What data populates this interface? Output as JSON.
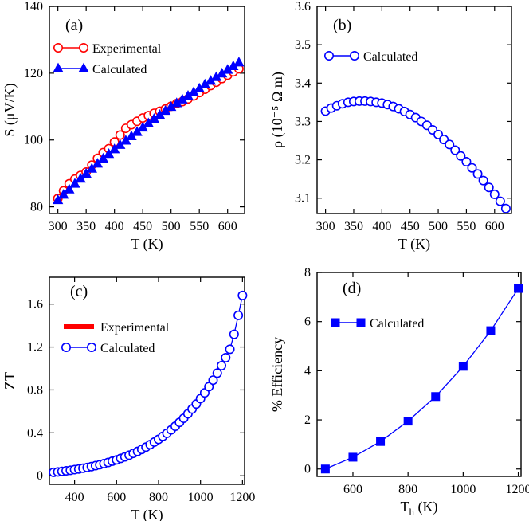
{
  "chart_data": [
    {
      "panel": "(a)",
      "type": "line",
      "xlabel": "T (K)",
      "ylabel": "S (μV/K)",
      "xlim": [
        285,
        630
      ],
      "ylim": [
        78,
        140
      ],
      "xticks": [
        300,
        350,
        400,
        450,
        500,
        550,
        600
      ],
      "yticks": [
        80,
        100,
        120,
        140
      ],
      "legend": "top-left",
      "series": [
        {
          "name": "Experimental",
          "color": "#ff0000",
          "marker": "circle",
          "x": [
            300,
            310,
            320,
            330,
            340,
            350,
            360,
            370,
            380,
            390,
            400,
            410,
            420,
            430,
            440,
            450,
            460,
            470,
            480,
            490,
            500,
            510,
            520,
            530,
            540,
            550,
            560,
            570,
            580,
            590,
            600,
            610,
            620
          ],
          "y": [
            82.5,
            84.8,
            86.9,
            88.3,
            89.4,
            90.4,
            92.5,
            94.5,
            96.2,
            97.4,
            99.4,
            101.5,
            103.5,
            104.6,
            105.6,
            106.6,
            107.3,
            108.0,
            108.6,
            109.3,
            110.1,
            110.9,
            111.5,
            112.3,
            113.2,
            114.2,
            115.2,
            116.3,
            117.3,
            118.4,
            119.4,
            120.4,
            121.3
          ]
        },
        {
          "name": "Calculated",
          "color": "#0000ff",
          "marker": "triangle",
          "x": [
            300,
            310,
            320,
            330,
            340,
            350,
            360,
            370,
            380,
            390,
            400,
            410,
            420,
            430,
            440,
            450,
            460,
            470,
            480,
            490,
            500,
            510,
            520,
            530,
            540,
            550,
            560,
            570,
            580,
            590,
            600,
            610,
            620
          ],
          "y": [
            82.0,
            83.6,
            85.2,
            86.9,
            88.4,
            89.9,
            91.4,
            92.9,
            94.4,
            95.8,
            97.2,
            98.5,
            99.8,
            101.1,
            102.4,
            103.7,
            105.0,
            106.3,
            107.5,
            108.7,
            109.9,
            111.0,
            112.1,
            113.2,
            114.3,
            115.4,
            116.6,
            117.7,
            118.8,
            119.9,
            121.0,
            122.1,
            123.2
          ]
        }
      ]
    },
    {
      "panel": "(b)",
      "type": "line",
      "xlabel": "T (K)",
      "ylabel": "ρ (10⁻⁵ Ω m)",
      "xlim": [
        285,
        630
      ],
      "ylim": [
        3.06,
        3.6
      ],
      "xticks": [
        300,
        350,
        400,
        450,
        500,
        550,
        600
      ],
      "yticks": [
        3.1,
        3.2,
        3.3,
        3.4,
        3.5,
        3.6
      ],
      "legend": "top-left",
      "series": [
        {
          "name": "Calculated",
          "color": "#0000ff",
          "marker": "circle",
          "x": [
            300,
            310,
            320,
            330,
            340,
            350,
            360,
            370,
            380,
            390,
            400,
            410,
            420,
            430,
            440,
            450,
            460,
            470,
            480,
            490,
            500,
            510,
            520,
            530,
            540,
            550,
            560,
            570,
            580,
            590,
            600,
            610,
            620
          ],
          "y": [
            3.327,
            3.335,
            3.341,
            3.346,
            3.35,
            3.352,
            3.353,
            3.353,
            3.352,
            3.35,
            3.348,
            3.344,
            3.339,
            3.333,
            3.326,
            3.318,
            3.31,
            3.3,
            3.29,
            3.278,
            3.266,
            3.253,
            3.24,
            3.225,
            3.21,
            3.195,
            3.179,
            3.163,
            3.146,
            3.128,
            3.11,
            3.092,
            3.073
          ]
        }
      ]
    },
    {
      "panel": "(c)",
      "type": "line",
      "xlabel": "T (K)",
      "ylabel": "ZT",
      "xlim": [
        280,
        1210
      ],
      "ylim": [
        -0.08,
        1.85
      ],
      "xticks": [
        400,
        600,
        800,
        1000,
        1200
      ],
      "yticks": [
        0,
        0.4,
        0.8,
        1.2,
        1.6
      ],
      "legend": "middle-left",
      "series": [
        {
          "name": "Experimental",
          "color": "#ff0000",
          "marker": "line",
          "x": [
            300,
            620
          ],
          "y": [
            0.03,
            0.145
          ]
        },
        {
          "name": "Calculated",
          "color": "#0000ff",
          "marker": "circle",
          "x": [
            300,
            320,
            340,
            360,
            380,
            400,
            420,
            440,
            460,
            480,
            500,
            520,
            540,
            560,
            580,
            600,
            620,
            640,
            660,
            680,
            700,
            720,
            740,
            760,
            780,
            800,
            820,
            840,
            860,
            880,
            900,
            920,
            940,
            960,
            980,
            1000,
            1020,
            1040,
            1060,
            1080,
            1100,
            1120,
            1140,
            1160,
            1180,
            1200
          ],
          "y": [
            0.032,
            0.036,
            0.041,
            0.046,
            0.051,
            0.057,
            0.063,
            0.07,
            0.077,
            0.085,
            0.094,
            0.103,
            0.113,
            0.124,
            0.136,
            0.148,
            0.162,
            0.176,
            0.192,
            0.209,
            0.227,
            0.246,
            0.267,
            0.29,
            0.314,
            0.339,
            0.367,
            0.396,
            0.428,
            0.462,
            0.498,
            0.536,
            0.578,
            0.622,
            0.669,
            0.719,
            0.773,
            0.83,
            0.891,
            0.956,
            1.026,
            1.1,
            1.179,
            1.318,
            1.495,
            1.68
          ]
        }
      ]
    },
    {
      "panel": "(d)",
      "type": "line",
      "xlabel": "T",
      "xlabel_sub": "h",
      "xlabel_unit": " (K)",
      "ylabel": "% Efficiency",
      "xlim": [
        470,
        1210
      ],
      "ylim": [
        -0.3,
        8
      ],
      "xticks": [
        600,
        800,
        1000,
        1200
      ],
      "yticks": [
        0,
        2,
        4,
        6,
        8
      ],
      "legend": "top-left",
      "series": [
        {
          "name": "Calculated",
          "color": "#0000ff",
          "marker": "square",
          "x": [
            500,
            600,
            700,
            800,
            900,
            1000,
            1100,
            1200
          ],
          "y": [
            0.0,
            0.48,
            1.12,
            1.95,
            2.95,
            4.18,
            5.63,
            7.35
          ]
        }
      ]
    }
  ]
}
